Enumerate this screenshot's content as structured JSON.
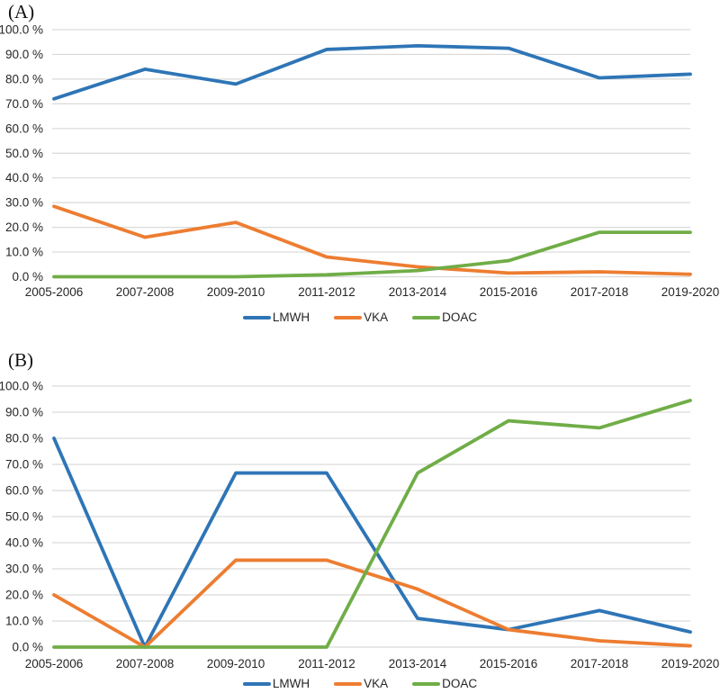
{
  "colors": {
    "lmwh_blue": "#2E75B6",
    "vka_orange": "#ED7D31",
    "doac_green": "#70AD47",
    "gridline": "#D9D9D9",
    "text": "#262626"
  },
  "chart_data": [
    {
      "type": "line",
      "panel_label": "(A)",
      "title": "",
      "xlabel": "",
      "ylabel": "",
      "ylim": [
        0,
        100
      ],
      "grid": "horizontal",
      "legend_position": "bottom",
      "categories": [
        "2005-2006",
        "2007-2008",
        "2009-2010",
        "2011-2012",
        "2013-2014",
        "2015-2016",
        "2017-2018",
        "2019-2020"
      ],
      "y_tick_labels": [
        "0.0 %",
        "10.0 %",
        "20.0 %",
        "30.0 %",
        "40.0 %",
        "50.0 %",
        "60.0 %",
        "70.0 %",
        "80.0 %",
        "90.0 %",
        "100.0 %"
      ],
      "series": [
        {
          "name": "LMWH",
          "color": "#2E75B6",
          "values": [
            72,
            84,
            78,
            92,
            93.5,
            92.5,
            80.5,
            82
          ]
        },
        {
          "name": "VKA",
          "color": "#ED7D31",
          "values": [
            28.5,
            16,
            22,
            8,
            4,
            1.5,
            2,
            1
          ]
        },
        {
          "name": "DOAC",
          "color": "#70AD47",
          "values": [
            0,
            0,
            0,
            0.8,
            2.5,
            6.5,
            18,
            18
          ]
        }
      ]
    },
    {
      "type": "line",
      "panel_label": "(B)",
      "title": "",
      "xlabel": "",
      "ylabel": "",
      "ylim": [
        0,
        100
      ],
      "grid": "horizontal",
      "legend_position": "bottom",
      "categories": [
        "2005-2006",
        "2007-2008",
        "2009-2010",
        "2011-2012",
        "2013-2014",
        "2015-2016",
        "2017-2018",
        "2019-2020"
      ],
      "y_tick_labels": [
        "0.0 %",
        "10.0 %",
        "20.0 %",
        "30.0 %",
        "40.0 %",
        "50.0 %",
        "60.0 %",
        "70.0 %",
        "80.0 %",
        "90.0 %",
        "100.0 %"
      ],
      "series": [
        {
          "name": "LMWH",
          "color": "#2E75B6",
          "values": [
            80,
            0,
            66.7,
            66.7,
            11,
            6.7,
            14,
            5.8
          ]
        },
        {
          "name": "VKA",
          "color": "#ED7D31",
          "values": [
            20,
            0,
            33.3,
            33.3,
            22.2,
            6.7,
            2.4,
            0.5
          ]
        },
        {
          "name": "DOAC",
          "color": "#70AD47",
          "values": [
            0,
            0,
            0,
            0,
            66.7,
            86.7,
            84,
            94.5
          ]
        }
      ]
    }
  ]
}
